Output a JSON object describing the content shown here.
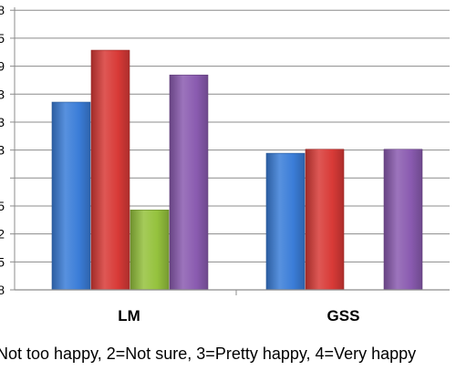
{
  "caption": "Not too happy, 2=Not sure, 3=Pretty happy, 4=Very happy",
  "chart_data": {
    "type": "bar",
    "categories": [
      "LM",
      "GSS"
    ],
    "series": [
      {
        "values": [
          2.85,
          2.21
        ],
        "color": "#3b7dd8"
      },
      {
        "values": [
          3.5,
          2.26
        ],
        "color": "#d83a37"
      },
      {
        "values": [
          1.5,
          null
        ],
        "color": "#95c23d"
      },
      {
        "values": [
          3.19,
          2.26
        ],
        "color": "#8a5bb0"
      }
    ],
    "ylim": [
      0.5,
      3.9
    ],
    "tick_step": 0.35,
    "y_tick_labels": [
      "8",
      "5",
      "2",
      "5",
      "",
      "3",
      "3",
      "3",
      "9",
      "5",
      "8"
    ],
    "grid": true,
    "legend": "none"
  }
}
